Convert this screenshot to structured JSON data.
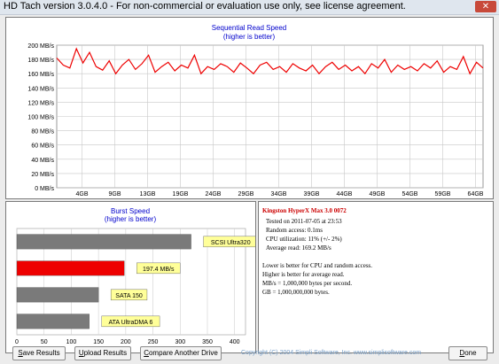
{
  "window": {
    "title": "HD Tach version 3.0.4.0  - For non-commercial or evaluation use only, see license agreement.",
    "close_glyph": "✕"
  },
  "seq_chart": {
    "title": "Sequential Read Speed",
    "subtitle": "(higher is better)",
    "line_color": "#ee0000",
    "chart_data": {
      "type": "line",
      "title": "Sequential Read Speed",
      "subtitle": "(higher is better)",
      "x_ticks": [
        "4GB",
        "9GB",
        "13GB",
        "19GB",
        "24GB",
        "29GB",
        "34GB",
        "39GB",
        "44GB",
        "49GB",
        "54GB",
        "59GB",
        "64GB"
      ],
      "y_ticks": [
        "0 MB/s",
        "20 MB/s",
        "40 MB/s",
        "60 MB/s",
        "80 MB/s",
        "100 MB/s",
        "120 MB/s",
        "140 MB/s",
        "160 MB/s",
        "180 MB/s",
        "200 MB/s"
      ],
      "xlim": [
        0,
        65
      ],
      "ylim": [
        0,
        200
      ],
      "grid": true,
      "x": [
        0,
        1,
        2,
        3,
        4,
        5,
        6,
        7,
        8,
        9,
        10,
        11,
        12,
        13,
        14,
        15,
        16,
        17,
        18,
        19,
        20,
        21,
        22,
        23,
        24,
        25,
        26,
        27,
        28,
        29,
        30,
        31,
        32,
        33,
        34,
        35,
        36,
        37,
        38,
        39,
        40,
        41,
        42,
        43,
        44,
        45,
        46,
        47,
        48,
        49,
        50,
        51,
        52,
        53,
        54,
        55,
        56,
        57,
        58,
        59,
        60,
        61,
        62,
        63,
        64,
        65
      ],
      "y": [
        182,
        172,
        168,
        195,
        175,
        190,
        170,
        165,
        178,
        160,
        172,
        180,
        166,
        174,
        186,
        162,
        170,
        176,
        164,
        172,
        168,
        186,
        160,
        170,
        166,
        174,
        170,
        162,
        175,
        168,
        160,
        172,
        176,
        166,
        170,
        162,
        174,
        168,
        164,
        172,
        160,
        170,
        176,
        166,
        172,
        164,
        170,
        160,
        174,
        168,
        180,
        162,
        172,
        166,
        170,
        164,
        174,
        168,
        178,
        162,
        170,
        166,
        184,
        160,
        176,
        168
      ]
    }
  },
  "burst_chart": {
    "title": "Burst Speed",
    "subtitle": "(higher is better)",
    "chart_data": {
      "type": "bar",
      "orientation": "horizontal",
      "title": "Burst Speed",
      "subtitle": "(higher is better)",
      "categories": [
        "SCSI Ultra320",
        "197.4 MB/s",
        "SATA 150",
        "ATA UltraDMA 6"
      ],
      "values": [
        320,
        197.4,
        150,
        133
      ],
      "colors": [
        "#7a7a7a",
        "#ee0000",
        "#7a7a7a",
        "#7a7a7a"
      ],
      "x_ticks": [
        "0",
        "50",
        "100",
        "150",
        "200",
        "250",
        "300",
        "350",
        "400"
      ],
      "xlim": [
        0,
        420
      ]
    }
  },
  "info": {
    "drive_name": "Kingston HyperX Max 3.0 0072",
    "tested_on": "Tested on 2011-07-05 at 23:53",
    "random_access": "Random access: 0.1ms",
    "cpu": "CPU utilization: 11% (+/- 2%)",
    "average": "Average read: 169.2 MB/s",
    "note1": "Lower is better for CPU and random access.",
    "note2": "Higher is better for average read.",
    "note3": "MB/s = 1,000,000 bytes per second.",
    "note4": "GB = 1,000,000,000 bytes."
  },
  "buttons": {
    "save_u": "S",
    "save_rest": "ave Results",
    "upload_u": "U",
    "upload_rest": "pload Results",
    "compare_u": "C",
    "compare_rest": "ompare Another Drive",
    "done_u": "D",
    "done_rest": "one"
  },
  "copyright": "Copyright (C) 2004 Simpli Software, Inc. www.simplisoftware.com"
}
